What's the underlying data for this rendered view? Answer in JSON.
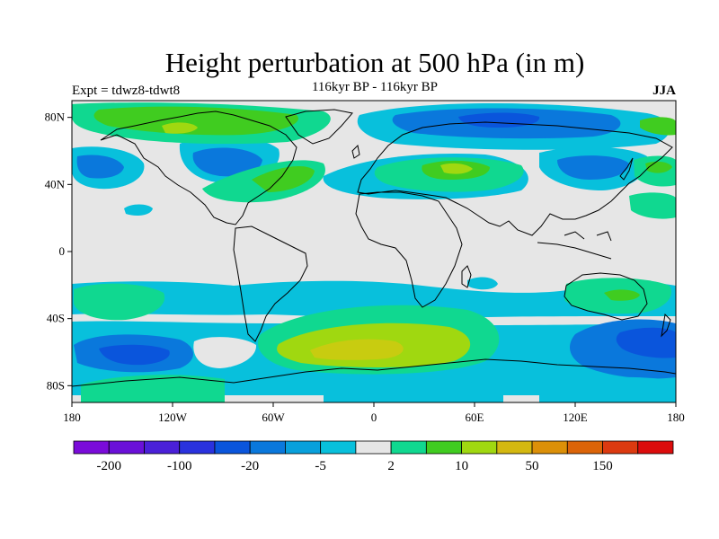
{
  "title": "Height perturbation at 500 hPa (in m)",
  "left_label": "Expt = tdwz8-tdwt8",
  "center_label": "116kyr BP - 116kyr BP",
  "right_label": "JJA",
  "lat_ticks": [
    {
      "label": "80N",
      "lat": 80
    },
    {
      "label": "40N",
      "lat": 40
    },
    {
      "label": "0",
      "lat": 0
    },
    {
      "label": "40S",
      "lat": -40
    },
    {
      "label": "80S",
      "lat": -80
    }
  ],
  "lon_ticks": [
    {
      "label": "180",
      "lon": -180
    },
    {
      "label": "120W",
      "lon": -120
    },
    {
      "label": "60W",
      "lon": -60
    },
    {
      "label": "0",
      "lon": 0
    },
    {
      "label": "60E",
      "lon": 60
    },
    {
      "label": "120E",
      "lon": 120
    },
    {
      "label": "180",
      "lon": 180
    }
  ],
  "colorbar": {
    "colors": [
      "#7a0bd9",
      "#6a10d8",
      "#4a20d8",
      "#2a32de",
      "#0a55dc",
      "#0a78dc",
      "#08a0dc",
      "#08c0dc",
      "#e6e6e6",
      "#10d890",
      "#40cc20",
      "#a0d810",
      "#d4b810",
      "#dc9008",
      "#dc6408",
      "#dc3a10",
      "#dc0c0c"
    ],
    "labels": [
      {
        "text": "-200",
        "boundary": 1
      },
      {
        "text": "-100",
        "boundary": 3
      },
      {
        "text": "-20",
        "boundary": 5
      },
      {
        "text": "-5",
        "boundary": 7
      },
      {
        "text": "2",
        "boundary": 9
      },
      {
        "text": "10",
        "boundary": 11
      },
      {
        "text": "50",
        "boundary": 13
      },
      {
        "text": "150",
        "boundary": 15
      }
    ]
  },
  "field_colors": {
    "background": "#e6e6e6",
    "cyan": "#08c0dc",
    "mid_blue": "#08a0dc",
    "blue": "#0a78dc",
    "deep_blue": "#0a55dc",
    "teal_green": "#10d890",
    "green": "#40cc20",
    "yellow_green": "#a0d810",
    "gold": "#d4b810"
  }
}
